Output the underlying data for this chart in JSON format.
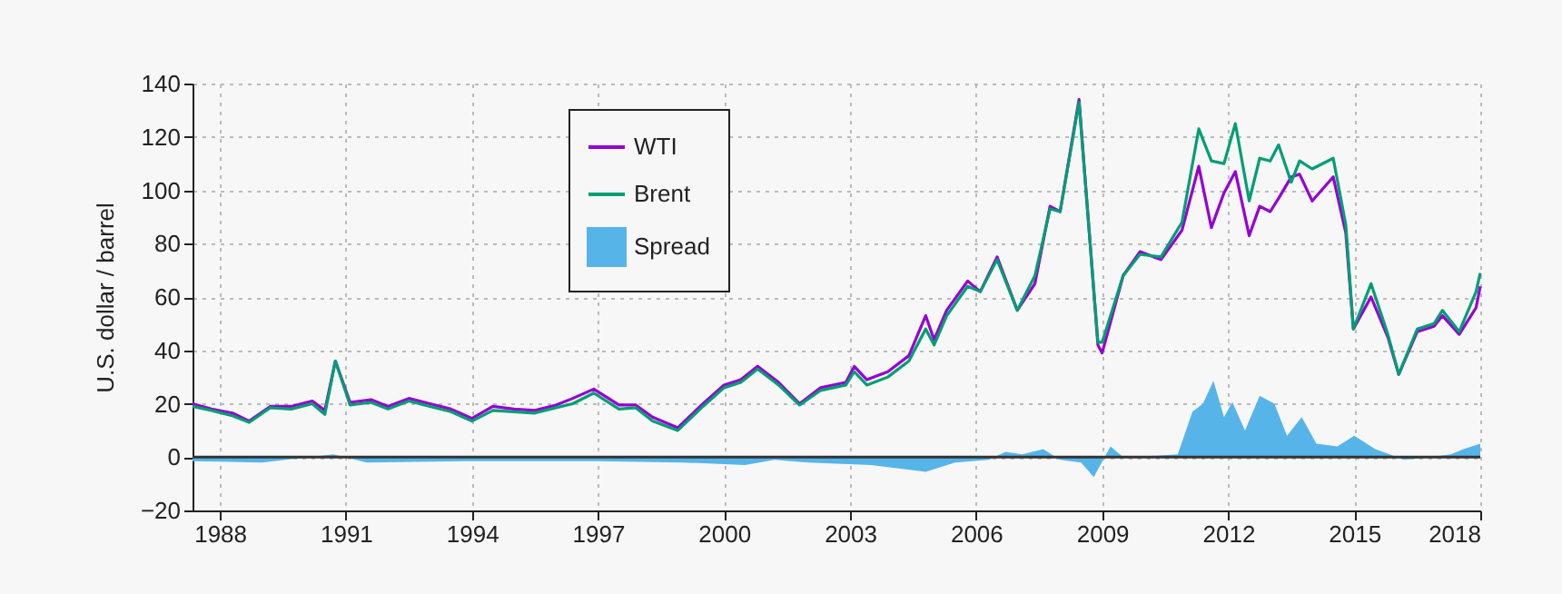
{
  "chart_data": {
    "type": "line",
    "ylabel": "U.S. dollar / barrel",
    "xlim": [
      1987.35,
      2018
    ],
    "xticks": [
      1988,
      1991,
      1994,
      1997,
      2000,
      2003,
      2006,
      2009,
      2012,
      2015,
      2018
    ],
    "ylim": [
      -20,
      140
    ],
    "yticks": [
      -20,
      0,
      20,
      40,
      60,
      80,
      100,
      120,
      140
    ],
    "grid": true,
    "legend": "top left",
    "x": [
      1987.35,
      1987.8,
      1988.3,
      1988.7,
      1989.2,
      1989.7,
      1990.2,
      1990.5,
      1990.75,
      1991.1,
      1991.6,
      1992.0,
      1992.5,
      1993.0,
      1993.5,
      1994.0,
      1994.5,
      1995.0,
      1995.5,
      1996.0,
      1996.4,
      1996.9,
      1997.5,
      1997.9,
      1998.3,
      1998.9,
      1999.5,
      2000.0,
      2000.4,
      2000.8,
      2001.3,
      2001.8,
      2002.3,
      2002.9,
      2003.1,
      2003.4,
      2003.9,
      2004.4,
      2004.8,
      2005.0,
      2005.3,
      2005.8,
      2006.1,
      2006.5,
      2006.98,
      2007.4,
      2007.76,
      2008.0,
      2008.45,
      2008.9,
      2009.0,
      2009.5,
      2009.9,
      2010.4,
      2010.9,
      2011.3,
      2011.6,
      2011.9,
      2012.17,
      2012.5,
      2012.75,
      2013.0,
      2013.2,
      2013.5,
      2013.7,
      2014.0,
      2014.5,
      2014.8,
      2014.98,
      2015.4,
      2015.8,
      2016.06,
      2016.5,
      2016.9,
      2017.1,
      2017.5,
      2017.9,
      2018.0
    ],
    "series": [
      {
        "name": "WTI",
        "color": "#9400d3",
        "values": [
          20,
          18,
          16.5,
          13.5,
          19,
          19,
          21,
          17.5,
          36,
          20.5,
          21.5,
          19,
          22,
          20,
          18,
          14.5,
          19,
          18,
          17.5,
          19.5,
          22,
          25.5,
          19.5,
          19.5,
          15,
          11,
          20,
          27,
          29,
          34,
          28,
          20,
          26,
          28,
          34,
          29,
          32,
          38,
          53,
          44,
          55,
          66,
          62,
          75,
          55,
          65,
          94,
          92,
          134,
          42,
          39,
          68,
          77,
          74,
          85,
          109,
          86,
          99,
          107,
          83,
          94,
          92,
          97,
          105,
          106,
          96,
          105,
          84,
          48,
          60,
          45,
          31,
          47,
          49,
          53,
          46,
          56,
          64
        ]
      },
      {
        "name": "Brent",
        "color": "#009e73",
        "values": [
          19,
          17.5,
          15.5,
          13,
          18.5,
          18,
          20,
          16,
          36,
          19.5,
          20.5,
          18,
          21,
          19,
          17,
          13.5,
          17.5,
          17,
          16.5,
          18.5,
          20,
          24,
          18,
          18.5,
          13.5,
          10,
          19,
          26,
          28,
          33,
          27,
          19.5,
          25,
          27,
          32,
          27,
          30,
          36,
          48,
          42,
          53,
          64,
          62,
          74,
          55,
          68,
          93,
          92,
          133,
          43,
          43,
          68,
          76,
          75,
          88,
          123,
          111,
          110,
          125,
          96,
          112,
          111,
          117,
          103,
          111,
          108,
          112,
          87,
          48,
          65,
          46,
          31,
          48,
          50,
          55,
          47,
          62,
          69
        ]
      },
      {
        "name": "Spread",
        "type": "area",
        "color": "#56b4e9",
        "x": [
          1987.35,
          1989.0,
          1990.7,
          1991.5,
          1994.0,
          1997.0,
          1999.0,
          2000.5,
          2001.2,
          2002.0,
          2003.5,
          2004.8,
          2005.5,
          2006.3,
          2006.7,
          2007.1,
          2007.6,
          2008.0,
          2008.5,
          2008.8,
          2009.2,
          2009.5,
          2010.3,
          2010.8,
          2011.15,
          2011.4,
          2011.65,
          2011.9,
          2012.1,
          2012.4,
          2012.75,
          2013.1,
          2013.4,
          2013.75,
          2014.1,
          2014.6,
          2015.0,
          2015.5,
          2016.2,
          2016.8,
          2017.3,
          2017.6,
          2018.0
        ],
        "values": [
          -1.5,
          -2,
          1,
          -2,
          -1.5,
          -1.5,
          -2,
          -3,
          -1,
          -2,
          -3,
          -5.5,
          -2,
          -1,
          2,
          1,
          3,
          -1,
          -2,
          -7.5,
          4,
          0,
          0.5,
          1,
          17,
          20,
          28.6,
          15,
          20.6,
          10,
          23,
          20,
          8,
          15,
          5,
          4,
          8,
          3,
          -1,
          0,
          1,
          3,
          5
        ]
      }
    ],
    "ref_lines": [
      {
        "axis": "y",
        "value": 0,
        "color": "#333333"
      }
    ]
  }
}
